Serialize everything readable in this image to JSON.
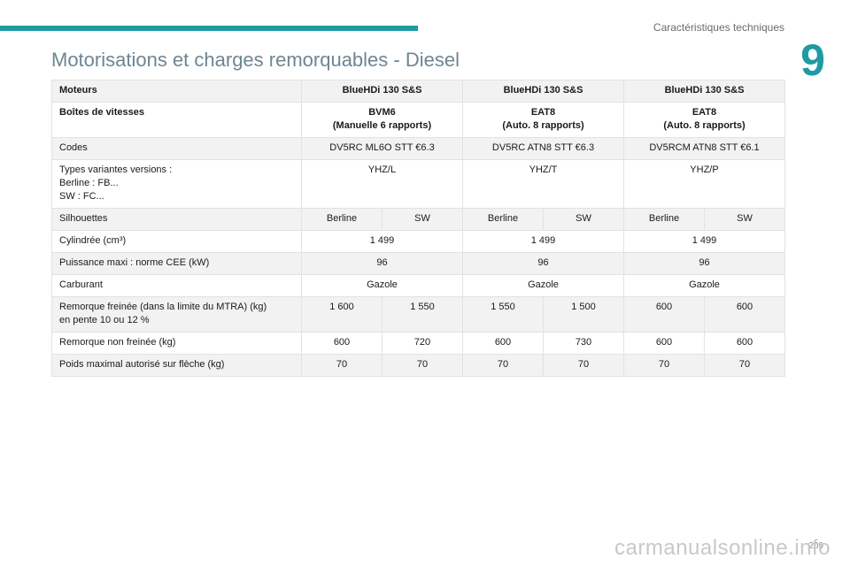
{
  "header": {
    "section_title": "Caractéristiques techniques",
    "chapter_number": "9",
    "accent_color": "#1f9aa3"
  },
  "page_title": "Motorisations et charges remorquables - Diesel",
  "table": {
    "header_label": "Moteurs",
    "engines": [
      "BlueHDi 130 S&S",
      "BlueHDi 130 S&S",
      "BlueHDi 130 S&S"
    ],
    "gearbox_label": "Boîtes de vitesses",
    "gearboxes": [
      {
        "name": "BVM6",
        "detail": "(Manuelle 6 rapports)"
      },
      {
        "name": "EAT8",
        "detail": "(Auto. 8 rapports)"
      },
      {
        "name": "EAT8",
        "detail": "(Auto. 8 rapports)"
      }
    ],
    "codes_label": "Codes",
    "codes": [
      "DV5RC ML6O STT €6.3",
      "DV5RC ATN8 STT €6.3",
      "DV5RCM ATN8 STT €6.1"
    ],
    "variants_label_lines": [
      "Types variantes versions :",
      "Berline : FB...",
      "SW : FC..."
    ],
    "variants": [
      "YHZ/L",
      "YHZ/T",
      "YHZ/P"
    ],
    "silhouettes_label": "Silhouettes",
    "silhouettes": [
      "Berline",
      "SW",
      "Berline",
      "SW",
      "Berline",
      "SW"
    ],
    "displacement_label": "Cylindrée (cm³)",
    "displacement": [
      "1 499",
      "1 499",
      "1 499"
    ],
    "power_label": "Puissance maxi : norme CEE (kW)",
    "power": [
      "96",
      "96",
      "96"
    ],
    "fuel_label": "Carburant",
    "fuel": [
      "Gazole",
      "Gazole",
      "Gazole"
    ],
    "braked_label_lines": [
      "Remorque freinée (dans la limite du MTRA) (kg)",
      "en pente 10 ou 12 %"
    ],
    "braked": [
      "1 600",
      "1 550",
      "1 550",
      "1 500",
      "600",
      "600"
    ],
    "unbraked_label": "Remorque non freinée (kg)",
    "unbraked": [
      "600",
      "720",
      "600",
      "730",
      "600",
      "600"
    ],
    "noseweight_label": "Poids maximal autorisé sur flèche (kg)",
    "noseweight": [
      "70",
      "70",
      "70",
      "70",
      "70",
      "70"
    ]
  },
  "footer": {
    "page_number": "209",
    "watermark": "carmanualsonline.info"
  }
}
